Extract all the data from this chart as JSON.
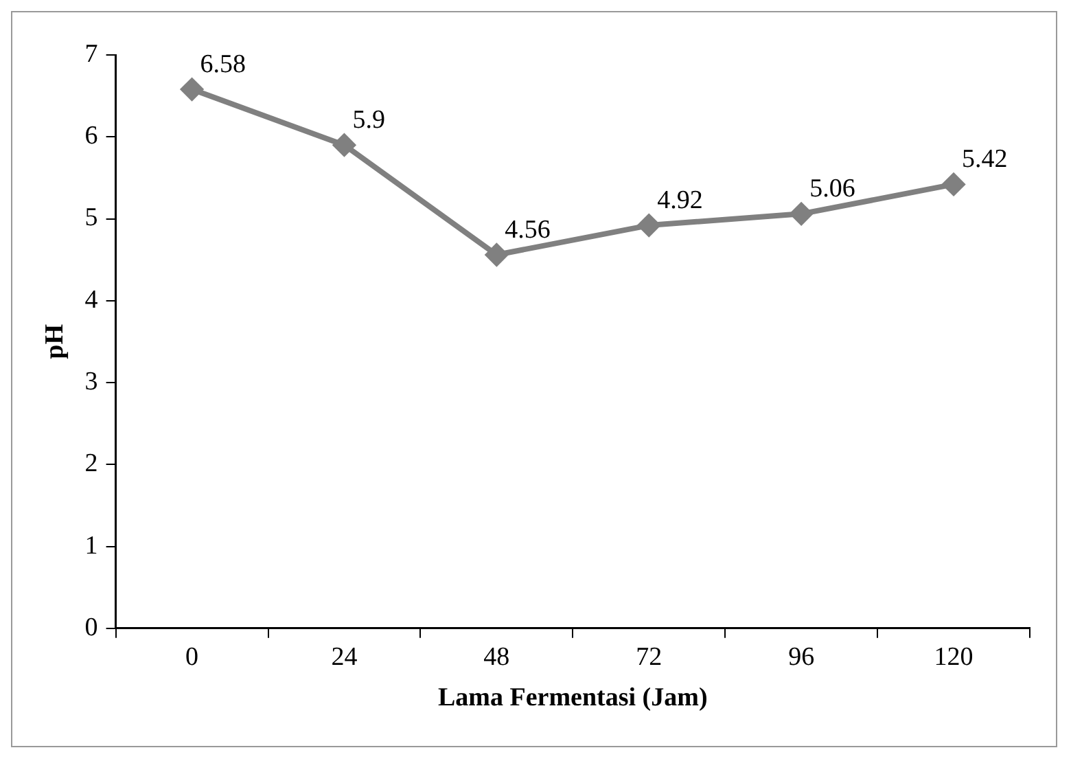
{
  "chart_data": {
    "type": "line",
    "xlabel": "Lama Fermentasi (Jam)",
    "ylabel": "pH",
    "categories": [
      "0",
      "24",
      "48",
      "72",
      "96",
      "120"
    ],
    "series": [
      {
        "color": "#808080",
        "values": [
          6.58,
          5.9,
          4.56,
          4.92,
          5.06,
          5.42
        ]
      }
    ],
    "ylim": [
      0,
      7
    ],
    "yticks": [
      0,
      1,
      2,
      3,
      4,
      5,
      6,
      7
    ],
    "grid": false,
    "legend": false,
    "marker": "diamond",
    "line_style": "solid",
    "data_labels": true
  }
}
